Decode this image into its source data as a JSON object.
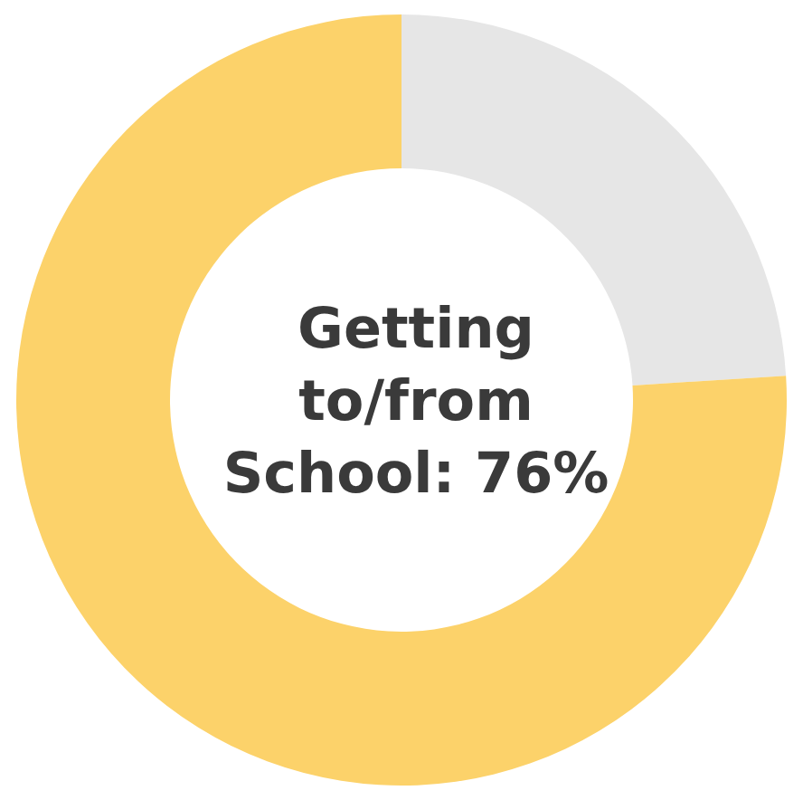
{
  "chart_data": {
    "type": "donut",
    "categories": [
      null,
      null
    ],
    "values": [
      24,
      76
    ],
    "colors": [
      "#e6e6e6",
      "#fcd26a"
    ],
    "annotations": [
      "Getting\nto/from\nSchool: 76%"
    ]
  }
}
